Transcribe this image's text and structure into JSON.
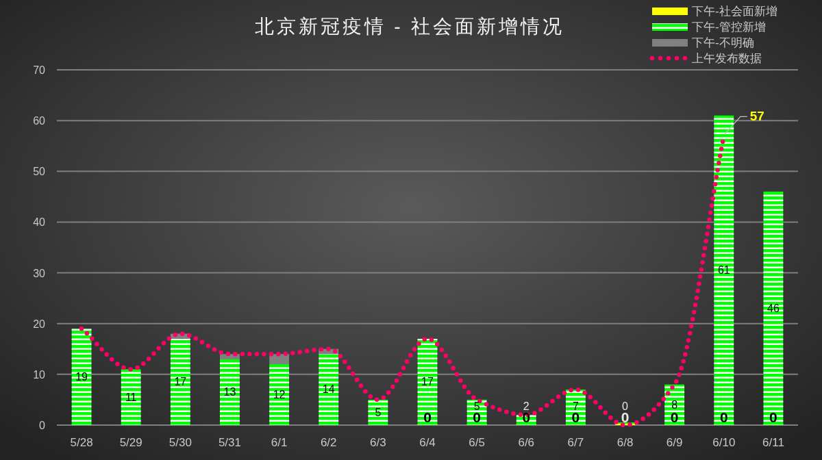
{
  "chart_data": {
    "type": "bar",
    "title": "北京新冠疫情 - 社会面新增情况",
    "categories": [
      "5/28",
      "5/29",
      "5/30",
      "5/31",
      "6/1",
      "6/2",
      "6/3",
      "6/4",
      "6/5",
      "6/6",
      "6/7",
      "6/8",
      "6/9",
      "6/10",
      "6/11"
    ],
    "stacked": true,
    "series": [
      {
        "name": "下午-社会面新增",
        "color": "#ffff00",
        "values": [
          null,
          null,
          null,
          null,
          null,
          null,
          null,
          0,
          0,
          0,
          0,
          0,
          0,
          0,
          0
        ],
        "value_labels": [
          null,
          null,
          null,
          null,
          null,
          null,
          null,
          "0",
          "0",
          "0",
          "0",
          "0",
          "0",
          "0",
          "0"
        ]
      },
      {
        "name": "下午-管控新增",
        "color": "#00ff00",
        "values": [
          19,
          11,
          17,
          13,
          12,
          14,
          5,
          17,
          5,
          2,
          7,
          0,
          8,
          61,
          46
        ],
        "value_labels": [
          "19",
          "11",
          "17",
          "13",
          "12",
          "14",
          "5",
          "17",
          "5",
          "2",
          "7",
          "0",
          "8",
          "61",
          "46"
        ]
      },
      {
        "name": "下午-不明确",
        "color": "#808080",
        "values": [
          0,
          0,
          1,
          1,
          2,
          1,
          0,
          0,
          0,
          0,
          0,
          0,
          0,
          0,
          0
        ]
      },
      {
        "name": "上午发布数据",
        "type": "line",
        "color": "#ff0066",
        "line_style": "dotted",
        "values": [
          19,
          11,
          18,
          14,
          14,
          15,
          5,
          17,
          5,
          2,
          7,
          0,
          8,
          57,
          null
        ],
        "value_labels": [
          null,
          null,
          null,
          null,
          null,
          null,
          null,
          null,
          null,
          null,
          null,
          null,
          null,
          "57",
          null
        ]
      }
    ],
    "ylim": [
      0,
      70
    ],
    "yticks": [
      0,
      10,
      20,
      30,
      40,
      50,
      60,
      70
    ],
    "grid": "y",
    "legend": "top right"
  }
}
